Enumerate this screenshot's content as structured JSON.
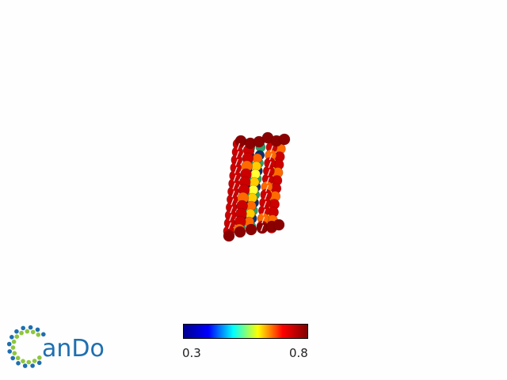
{
  "logo": {
    "text": "anDo",
    "c_glyph_colors": [
      "#1f6fb0",
      "#8dc63f"
    ]
  },
  "colorbar": {
    "min_label": "0.3",
    "max_label": "0.8",
    "stops": [
      "#00008f",
      "#0000ff",
      "#00ffff",
      "#ffff00",
      "#ff0000",
      "#800000"
    ]
  },
  "model": {
    "colors": {
      "outline": "#8b0000",
      "high": "#cc0000",
      "mid_high": "#ff6a00",
      "mid": "#ffcc00",
      "mid_low": "#ffff33",
      "low": "#2aa06a",
      "core": "#0b2f6e"
    }
  }
}
